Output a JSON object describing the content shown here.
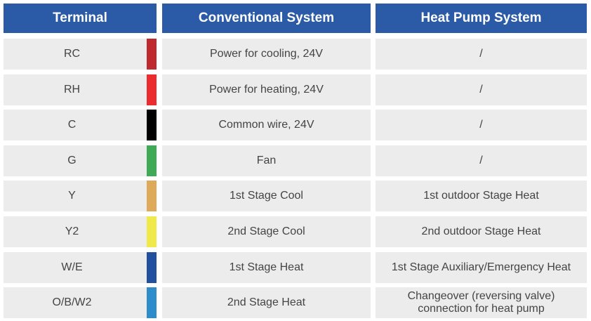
{
  "table": {
    "columns": [
      "Terminal",
      "Conventional System",
      "Heat Pump System"
    ],
    "rows": [
      {
        "terminal": "RC",
        "color": "#bf2a2e",
        "conventional": "Power for cooling, 24V",
        "heat_pump": "/"
      },
      {
        "terminal": "RH",
        "color": "#ea2c2f",
        "conventional": "Power for heating, 24V",
        "heat_pump": "/"
      },
      {
        "terminal": "C",
        "color": "#000000",
        "conventional": "Common wire, 24V",
        "heat_pump": "/"
      },
      {
        "terminal": "G",
        "color": "#3eaa55",
        "conventional": "Fan",
        "heat_pump": "/"
      },
      {
        "terminal": "Y",
        "color": "#deaa5a",
        "conventional": "1st Stage Cool",
        "heat_pump": "1st outdoor Stage Heat"
      },
      {
        "terminal": "Y2",
        "color": "#efe94a",
        "conventional": "2nd Stage Cool",
        "heat_pump": "2nd outdoor Stage Heat"
      },
      {
        "terminal": "W/E",
        "color": "#23509e",
        "conventional": "1st Stage Heat",
        "heat_pump": "1st Stage Auxiliary/Emergency Heat"
      },
      {
        "terminal": "O/B/W2",
        "color": "#2f8ccb",
        "conventional": "2nd Stage Heat",
        "heat_pump": "Changeover (reversing valve)\nconnection for heat pump"
      }
    ]
  }
}
